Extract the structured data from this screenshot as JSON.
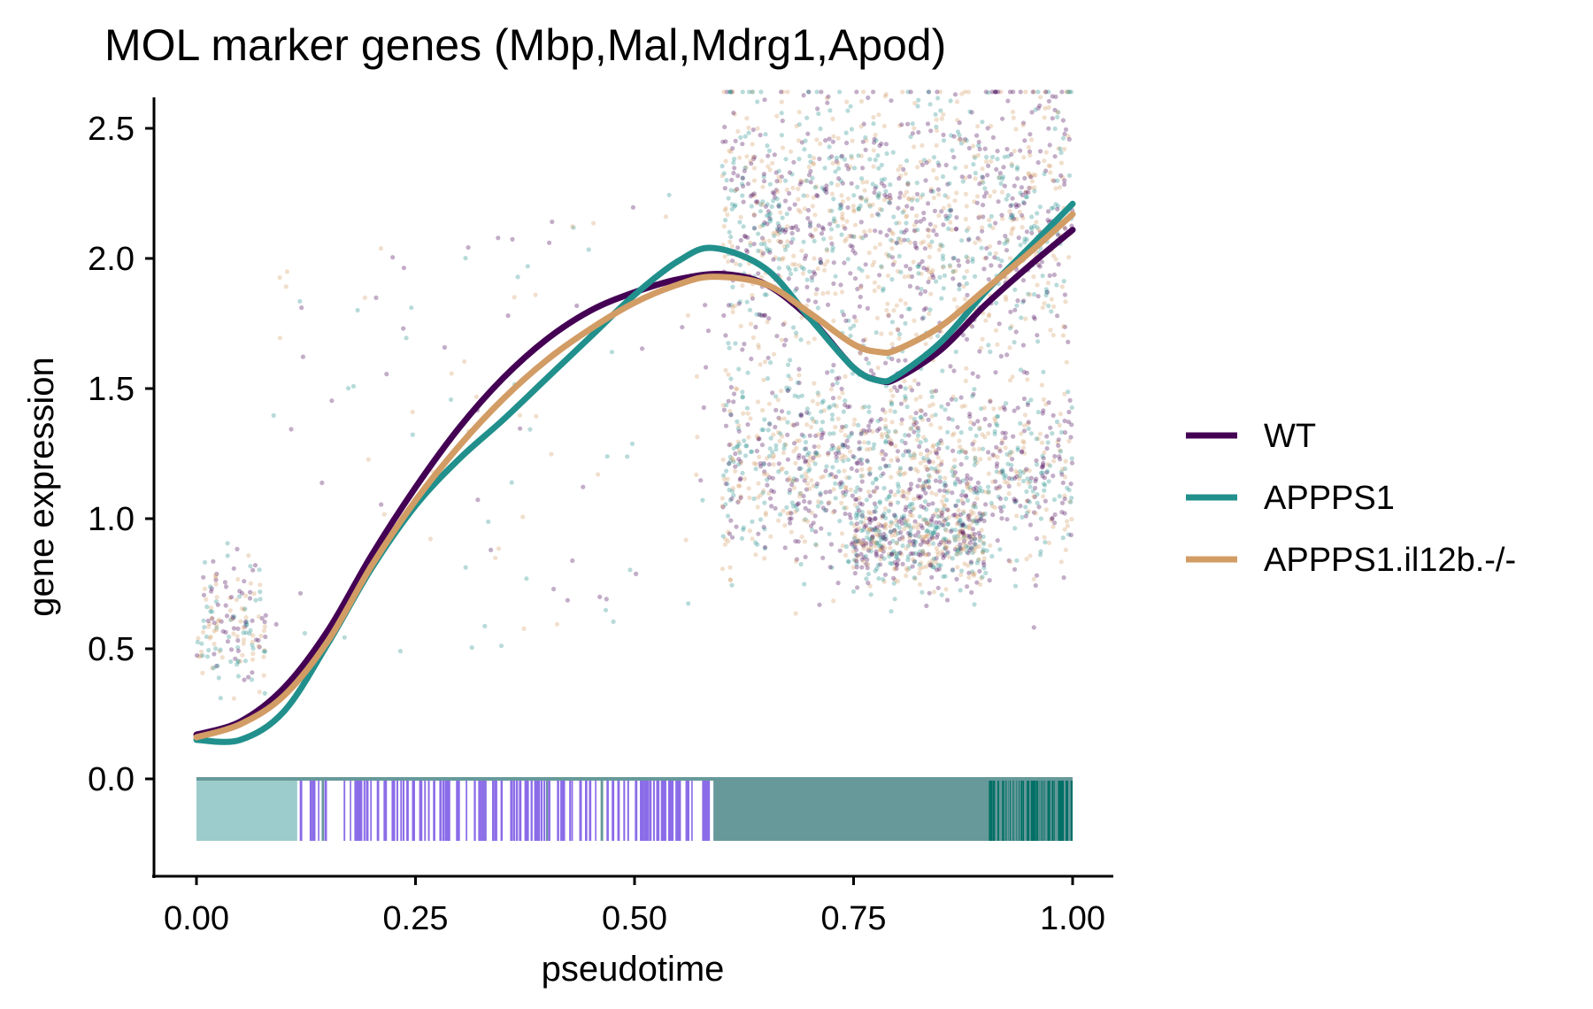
{
  "chart_data": {
    "type": "line",
    "title": "MOL marker genes (Mbp,Mal,Mdrg1,Apod)",
    "xlabel": "pseudotime",
    "ylabel": "gene expression",
    "xlim": [
      -0.1,
      1.1
    ],
    "ylim": [
      -0.38,
      2.65
    ],
    "x_ticks": [
      0.0,
      0.25,
      0.5,
      0.75,
      1.0
    ],
    "x_tick_labels": [
      "0.00",
      "0.25",
      "0.50",
      "0.75",
      "1.00"
    ],
    "y_ticks": [
      0.0,
      0.5,
      1.0,
      1.5,
      2.0,
      2.5
    ],
    "y_tick_labels": [
      "0.0",
      "0.5",
      "1.0",
      "1.5",
      "2.0",
      "2.5"
    ],
    "grid": false,
    "legend_position": "right",
    "series": [
      {
        "name": "WT",
        "color": "#440154",
        "x": [
          0.0,
          0.05,
          0.1,
          0.15,
          0.2,
          0.25,
          0.3,
          0.35,
          0.4,
          0.45,
          0.5,
          0.55,
          0.6,
          0.65,
          0.7,
          0.75,
          0.78,
          0.8,
          0.85,
          0.9,
          0.95,
          1.0
        ],
        "y": [
          0.17,
          0.22,
          0.35,
          0.57,
          0.86,
          1.12,
          1.35,
          1.54,
          1.69,
          1.8,
          1.87,
          1.92,
          1.94,
          1.9,
          1.77,
          1.58,
          1.53,
          1.54,
          1.65,
          1.82,
          1.97,
          2.11
        ]
      },
      {
        "name": "APPPS1",
        "color": "#21908C",
        "x": [
          0.0,
          0.05,
          0.1,
          0.15,
          0.2,
          0.25,
          0.3,
          0.35,
          0.4,
          0.45,
          0.5,
          0.55,
          0.59,
          0.65,
          0.7,
          0.75,
          0.78,
          0.8,
          0.85,
          0.9,
          0.95,
          1.0
        ],
        "y": [
          0.15,
          0.15,
          0.26,
          0.52,
          0.81,
          1.05,
          1.23,
          1.38,
          1.54,
          1.7,
          1.86,
          1.99,
          2.04,
          1.96,
          1.77,
          1.58,
          1.53,
          1.55,
          1.68,
          1.87,
          2.04,
          2.21
        ]
      },
      {
        "name": "APPPS1.il12b.-/-",
        "color": "#D29C65",
        "x": [
          0.0,
          0.05,
          0.1,
          0.15,
          0.2,
          0.25,
          0.3,
          0.35,
          0.4,
          0.45,
          0.5,
          0.55,
          0.59,
          0.65,
          0.7,
          0.75,
          0.78,
          0.8,
          0.85,
          0.9,
          0.95,
          1.0
        ],
        "y": [
          0.16,
          0.21,
          0.32,
          0.53,
          0.82,
          1.07,
          1.28,
          1.46,
          1.61,
          1.73,
          1.83,
          1.9,
          1.93,
          1.9,
          1.79,
          1.67,
          1.64,
          1.65,
          1.74,
          1.88,
          2.02,
          2.17
        ]
      }
    ],
    "scatter_clusters": [
      {
        "x_range": [
          0.0,
          0.08
        ],
        "y_center": 0.6,
        "y_spread": 0.12,
        "density": 0.12
      },
      {
        "x_range": [
          0.08,
          0.6
        ],
        "y_center": 1.1,
        "y_spread": 0.5,
        "density": 0.08
      },
      {
        "x_range": [
          0.6,
          1.0
        ],
        "y_center": 2.15,
        "y_spread": 0.28,
        "density": 1.0
      },
      {
        "x_range": [
          0.6,
          1.0
        ],
        "y_center": 1.2,
        "y_spread": 0.2,
        "density": 0.9
      },
      {
        "x_range": [
          0.75,
          0.9
        ],
        "y_center": 0.92,
        "y_spread": 0.08,
        "density": 0.35
      }
    ],
    "rug_colors": {
      "early": "#9CCCCC",
      "mid": "#8B6CE8",
      "late": "#67999A",
      "end": "#007066"
    }
  }
}
